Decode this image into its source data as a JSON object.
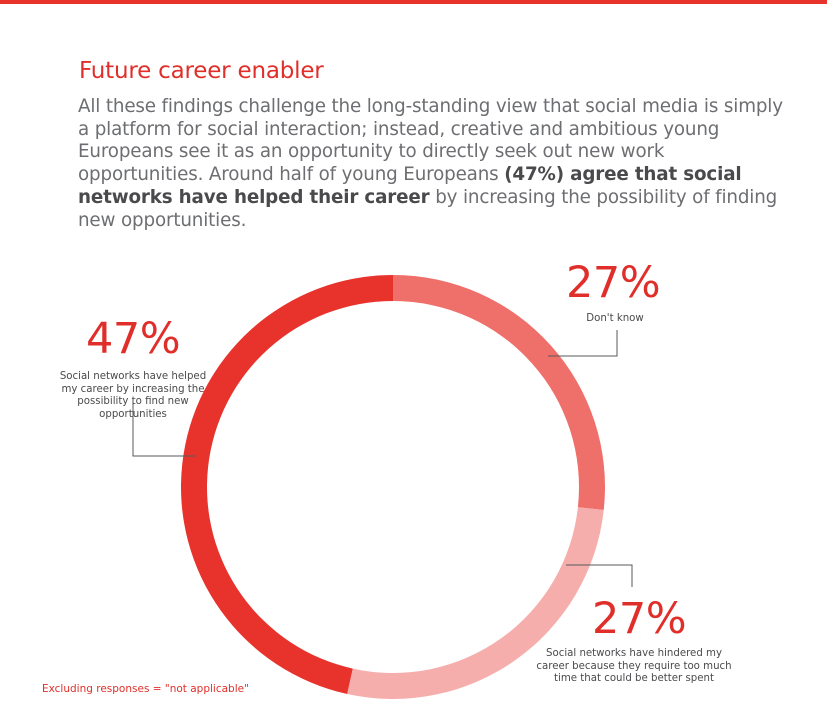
{
  "heading": "Future career enabler",
  "intro": {
    "part1": "All these findings challenge the long-standing view that social media is simply a platform for social interaction; instead, creative and ambitious young Europeans see it as an opportunity to directly seek out new work opportunities. Around half of young Europeans ",
    "highlight": "(47%) agree that social networks have helped their career",
    "part2": " by increasing the possibility of finding new opportunities."
  },
  "colors": {
    "accent": "#e02f2a",
    "helped": "#e8322c",
    "dont_know": "#ef6f6a",
    "hindered": "#f5aeac"
  },
  "chart_data": {
    "type": "pie",
    "style": "donut",
    "labels": [
      {
        "pct_text": "47%",
        "text": "Social networks have helped my career by increasing the possibility to find new opportunities"
      },
      {
        "pct_text": "27%",
        "text": "Don't know"
      },
      {
        "pct_text": "27%",
        "text": "Social networks have hindered my career because they require too much time that could be better spent"
      }
    ],
    "values": [
      47,
      27,
      27
    ]
  },
  "footnote": "Excluding responses = \"not applicable\""
}
